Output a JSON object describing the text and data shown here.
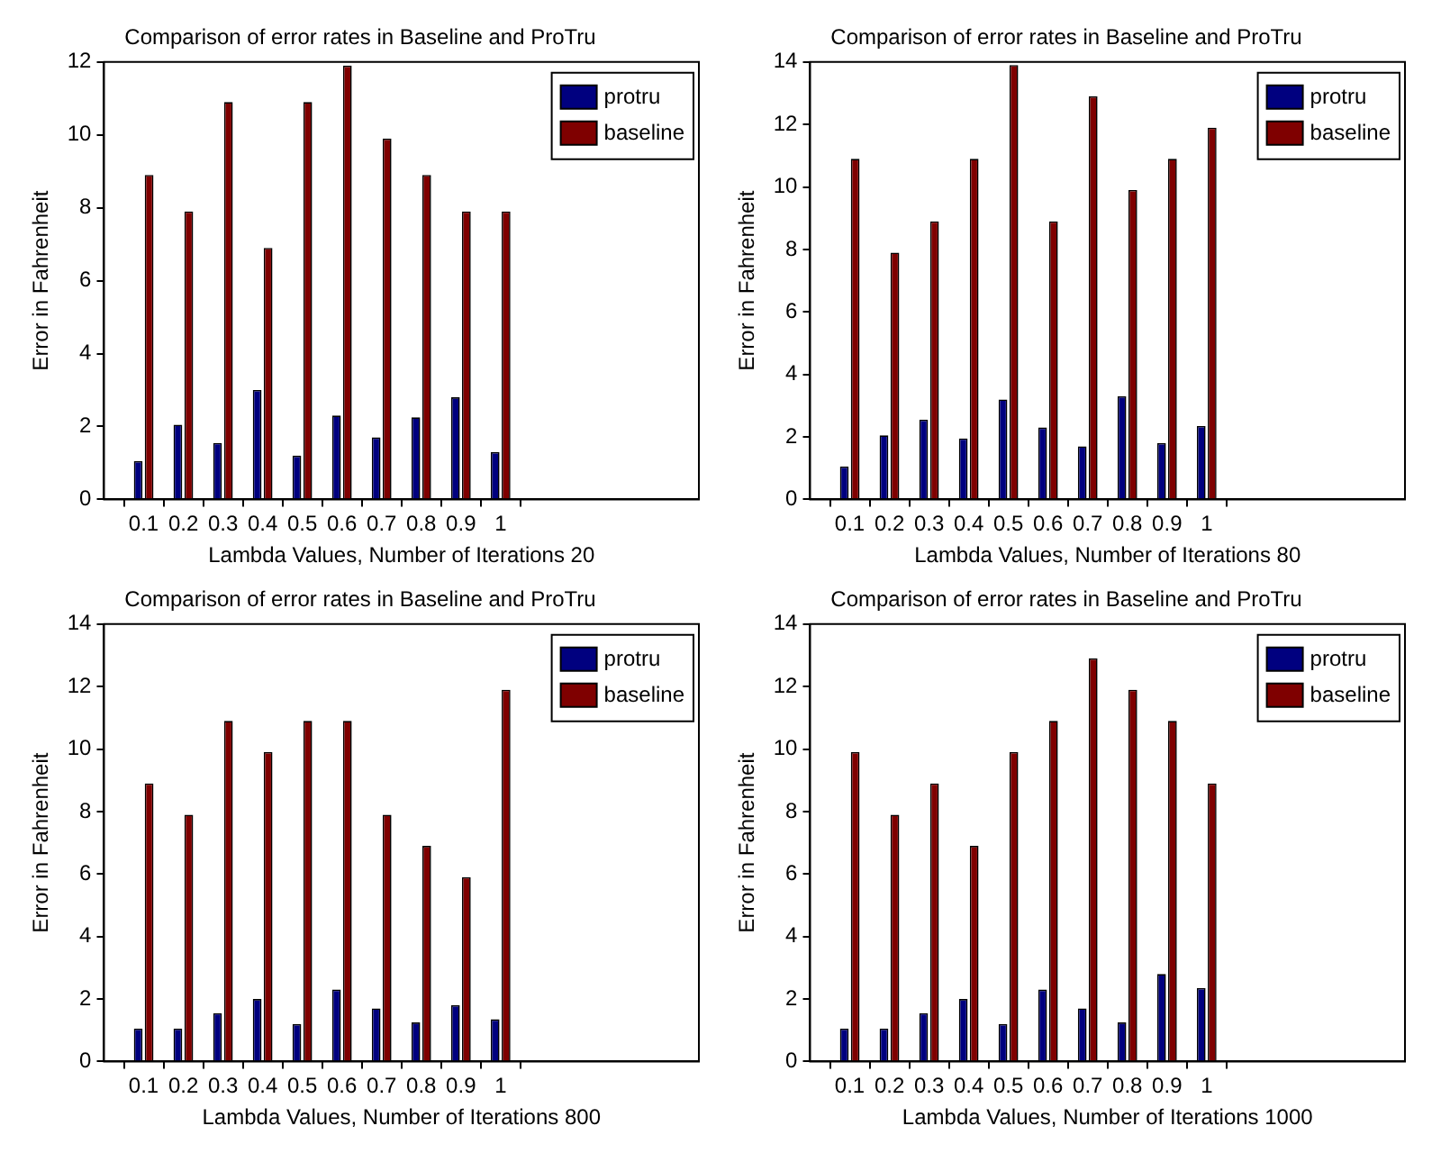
{
  "chart_data": [
    {
      "type": "bar",
      "title": "Comparison of error rates in Baseline and ProTru",
      "xlabel": "Lambda Values, Number of Iterations 20",
      "ylabel": "Error in Fahrenheit",
      "x": [
        0.1,
        0.2,
        0.3,
        0.4,
        0.5,
        0.6,
        0.7,
        0.8,
        0.9,
        1
      ],
      "xlim": [
        0,
        1.5
      ],
      "xticks": [
        0.1,
        0.2,
        0.3,
        0.4,
        0.5,
        0.6,
        0.7,
        0.8,
        0.9,
        1
      ],
      "ylim": [
        0,
        12
      ],
      "yticks": [
        0,
        2,
        4,
        6,
        8,
        10,
        12
      ],
      "grid": false,
      "legend": "top right",
      "series": [
        {
          "name": "protru",
          "color": "#00007f",
          "values": [
            1.05,
            2.05,
            1.55,
            3.0,
            1.2,
            2.3,
            1.7,
            2.25,
            2.8,
            1.3
          ]
        },
        {
          "name": "baseline",
          "color": "#7f0000",
          "values": [
            8.9,
            7.9,
            10.9,
            6.9,
            10.9,
            11.9,
            9.9,
            8.9,
            7.9,
            7.9
          ]
        }
      ]
    },
    {
      "type": "bar",
      "title": "Comparison of error rates in Baseline and ProTru",
      "xlabel": "Lambda Values, Number of Iterations 80",
      "ylabel": "Error in Fahrenheit",
      "x": [
        0.1,
        0.2,
        0.3,
        0.4,
        0.5,
        0.6,
        0.7,
        0.8,
        0.9,
        1
      ],
      "xlim": [
        0,
        1.5
      ],
      "xticks": [
        0.1,
        0.2,
        0.3,
        0.4,
        0.5,
        0.6,
        0.7,
        0.8,
        0.9,
        1
      ],
      "ylim": [
        0,
        14
      ],
      "yticks": [
        0,
        2,
        4,
        6,
        8,
        10,
        12,
        14
      ],
      "grid": false,
      "legend": "top right",
      "series": [
        {
          "name": "protru",
          "color": "#00007f",
          "values": [
            1.05,
            2.05,
            2.55,
            1.95,
            3.2,
            2.3,
            1.7,
            3.3,
            1.8,
            2.35
          ]
        },
        {
          "name": "baseline",
          "color": "#7f0000",
          "values": [
            10.9,
            7.9,
            8.9,
            10.9,
            13.9,
            8.9,
            12.9,
            9.9,
            10.9,
            11.9
          ]
        }
      ]
    },
    {
      "type": "bar",
      "title": "Comparison of error rates in Baseline and ProTru",
      "xlabel": "Lambda Values, Number of Iterations 800",
      "ylabel": "Error in Fahrenheit",
      "x": [
        0.1,
        0.2,
        0.3,
        0.4,
        0.5,
        0.6,
        0.7,
        0.8,
        0.9,
        1
      ],
      "xlim": [
        0,
        1.5
      ],
      "xticks": [
        0.1,
        0.2,
        0.3,
        0.4,
        0.5,
        0.6,
        0.7,
        0.8,
        0.9,
        1
      ],
      "ylim": [
        0,
        14
      ],
      "yticks": [
        0,
        2,
        4,
        6,
        8,
        10,
        12,
        14
      ],
      "grid": false,
      "legend": "top right",
      "series": [
        {
          "name": "protru",
          "color": "#00007f",
          "values": [
            1.05,
            1.05,
            1.55,
            2.0,
            1.2,
            2.3,
            1.7,
            1.25,
            1.8,
            1.35
          ]
        },
        {
          "name": "baseline",
          "color": "#7f0000",
          "values": [
            8.9,
            7.9,
            10.9,
            9.9,
            10.9,
            10.9,
            7.9,
            6.9,
            5.9,
            11.9
          ]
        }
      ]
    },
    {
      "type": "bar",
      "title": "Comparison of error rates in Baseline and ProTru",
      "xlabel": "Lambda Values, Number of Iterations 1000",
      "ylabel": "Error in Fahrenheit",
      "x": [
        0.1,
        0.2,
        0.3,
        0.4,
        0.5,
        0.6,
        0.7,
        0.8,
        0.9,
        1
      ],
      "xlim": [
        0,
        1.5
      ],
      "xticks": [
        0.1,
        0.2,
        0.3,
        0.4,
        0.5,
        0.6,
        0.7,
        0.8,
        0.9,
        1
      ],
      "ylim": [
        0,
        14
      ],
      "yticks": [
        0,
        2,
        4,
        6,
        8,
        10,
        12,
        14
      ],
      "grid": false,
      "legend": "top right",
      "series": [
        {
          "name": "protru",
          "color": "#00007f",
          "values": [
            1.05,
            1.05,
            1.55,
            2.0,
            1.2,
            2.3,
            1.7,
            1.25,
            2.8,
            2.35
          ]
        },
        {
          "name": "baseline",
          "color": "#7f0000",
          "values": [
            9.9,
            7.9,
            8.9,
            6.9,
            9.9,
            10.9,
            12.9,
            11.9,
            10.9,
            8.9
          ]
        }
      ]
    }
  ]
}
